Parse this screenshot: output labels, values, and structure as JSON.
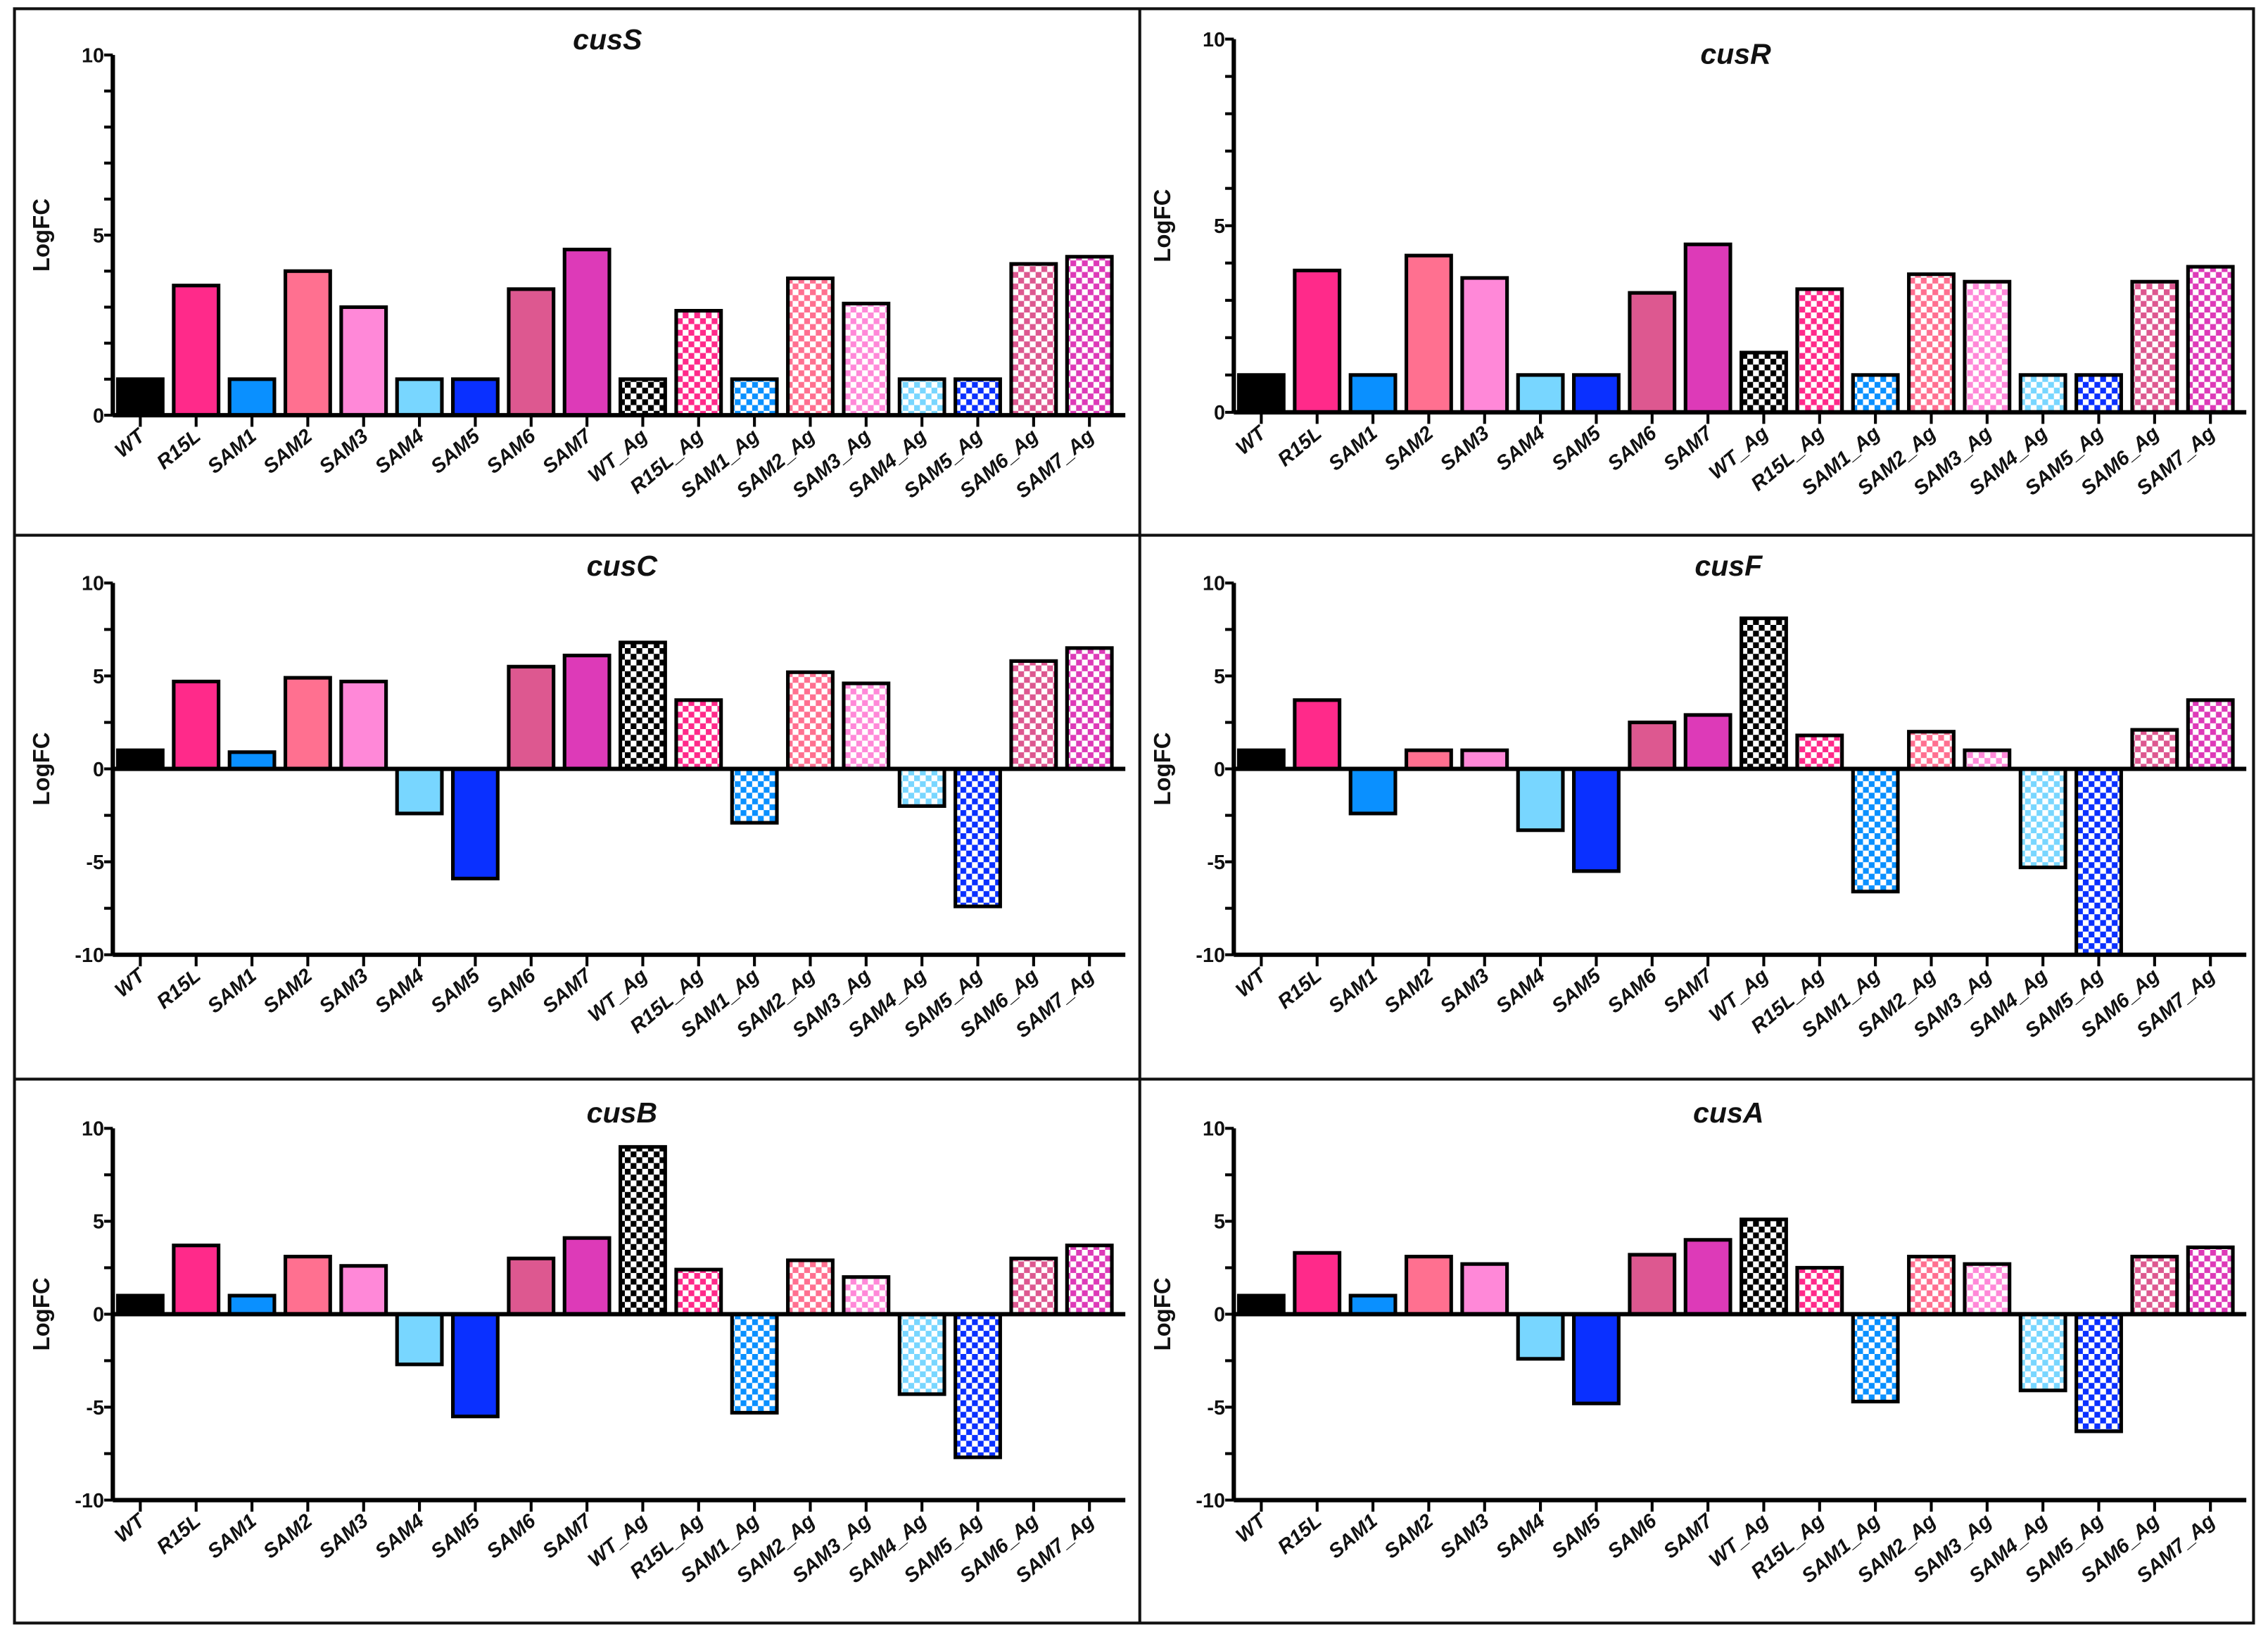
{
  "chart_data": [
    {
      "type": "bar",
      "title": "cusS",
      "ylabel": "LogFC",
      "ylim": [
        0,
        10
      ],
      "yticks": [
        "0",
        "5",
        "10"
      ],
      "categories": [
        "WT",
        "R15L",
        "SAM1",
        "SAM2",
        "SAM3",
        "SAM4",
        "SAM5",
        "SAM6",
        "SAM7",
        "WT_Ag",
        "R15L_Ag",
        "SAM1_Ag",
        "SAM2_Ag",
        "SAM3_Ag",
        "SAM4_Ag",
        "SAM5_Ag",
        "SAM6_Ag",
        "SAM7_Ag"
      ],
      "values": [
        1,
        3.6,
        1,
        4.0,
        3.0,
        1,
        1,
        3.5,
        4.6,
        1,
        2.9,
        1,
        3.8,
        3.1,
        1,
        1,
        4.2,
        4.4
      ]
    },
    {
      "type": "bar",
      "title": "cusR",
      "ylabel": "LogFC",
      "ylim": [
        0,
        10
      ],
      "yticks": [
        "0",
        "5",
        "10"
      ],
      "categories": [
        "WT",
        "R15L",
        "SAM1",
        "SAM2",
        "SAM3",
        "SAM4",
        "SAM5",
        "SAM6",
        "SAM7",
        "WT_Ag",
        "R15L_Ag",
        "SAM1_Ag",
        "SAM2_Ag",
        "SAM3_Ag",
        "SAM4_Ag",
        "SAM5_Ag",
        "SAM6_Ag",
        "SAM7_Ag"
      ],
      "values": [
        1,
        3.8,
        1,
        4.2,
        3.6,
        1,
        1,
        3.2,
        4.5,
        1.6,
        3.3,
        1,
        3.7,
        3.5,
        1,
        1,
        3.5,
        3.9
      ]
    },
    {
      "type": "bar",
      "title": "cusC",
      "ylabel": "LogFC",
      "ylim": [
        -10,
        10
      ],
      "yticks": [
        "-10",
        "-5",
        "0",
        "5",
        "10"
      ],
      "categories": [
        "WT",
        "R15L",
        "SAM1",
        "SAM2",
        "SAM3",
        "SAM4",
        "SAM5",
        "SAM6",
        "SAM7",
        "WT_Ag",
        "R15L_Ag",
        "SAM1_Ag",
        "SAM2_Ag",
        "SAM3_Ag",
        "SAM4_Ag",
        "SAM5_Ag",
        "SAM6_Ag",
        "SAM7_Ag"
      ],
      "values": [
        1,
        4.7,
        0.9,
        4.9,
        4.7,
        -2.4,
        -5.9,
        5.5,
        6.1,
        6.8,
        3.7,
        -2.9,
        5.2,
        4.6,
        -2.0,
        -7.4,
        5.8,
        6.5
      ]
    },
    {
      "type": "bar",
      "title": "cusF",
      "ylabel": "LogFC",
      "ylim": [
        -10,
        10
      ],
      "yticks": [
        "-10",
        "-5",
        "0",
        "5",
        "10"
      ],
      "categories": [
        "WT",
        "R15L",
        "SAM1",
        "SAM2",
        "SAM3",
        "SAM4",
        "SAM5",
        "SAM6",
        "SAM7",
        "WT_Ag",
        "R15L_Ag",
        "SAM1_Ag",
        "SAM2_Ag",
        "SAM3_Ag",
        "SAM4_Ag",
        "SAM5_Ag",
        "SAM6_Ag",
        "SAM7_Ag"
      ],
      "values": [
        1,
        3.7,
        -2.4,
        1,
        1,
        -3.3,
        -5.5,
        2.5,
        2.9,
        8.1,
        1.8,
        -6.6,
        2.0,
        1,
        -5.3,
        -10,
        2.1,
        3.7
      ]
    },
    {
      "type": "bar",
      "title": "cusB",
      "ylabel": "LogFC",
      "ylim": [
        -10,
        10
      ],
      "yticks": [
        "-10",
        "-5",
        "0",
        "5",
        "10"
      ],
      "categories": [
        "WT",
        "R15L",
        "SAM1",
        "SAM2",
        "SAM3",
        "SAM4",
        "SAM5",
        "SAM6",
        "SAM7",
        "WT_Ag",
        "R15L_Ag",
        "SAM1_Ag",
        "SAM2_Ag",
        "SAM3_Ag",
        "SAM4_Ag",
        "SAM5_Ag",
        "SAM6_Ag",
        "SAM7_Ag"
      ],
      "values": [
        1,
        3.7,
        1,
        3.1,
        2.6,
        -2.7,
        -5.5,
        3.0,
        4.1,
        9.0,
        2.4,
        -5.3,
        2.9,
        2.0,
        -4.3,
        -7.7,
        3.0,
        3.7
      ]
    },
    {
      "type": "bar",
      "title": "cusA",
      "ylabel": "LogFC",
      "ylim": [
        -10,
        10
      ],
      "yticks": [
        "-10",
        "-5",
        "0",
        "5",
        "10"
      ],
      "categories": [
        "WT",
        "R15L",
        "SAM1",
        "SAM2",
        "SAM3",
        "SAM4",
        "SAM5",
        "SAM6",
        "SAM7",
        "WT_Ag",
        "R15L_Ag",
        "SAM1_Ag",
        "SAM2_Ag",
        "SAM3_Ag",
        "SAM4_Ag",
        "SAM5_Ag",
        "SAM6_Ag",
        "SAM7_Ag"
      ],
      "values": [
        1,
        3.3,
        1,
        3.1,
        2.7,
        -2.4,
        -4.8,
        3.2,
        4.0,
        5.1,
        2.5,
        -4.7,
        3.1,
        2.7,
        -4.1,
        -6.3,
        3.1,
        3.6
      ]
    }
  ],
  "colors": [
    "#000000",
    "#ff2a8a",
    "#0a90ff",
    "#ff7090",
    "#ff88d8",
    "#78d6ff",
    "#0a30ff",
    "#dd5890",
    "#dd3ab8"
  ],
  "pattern_note_colors_ag": "checkered"
}
